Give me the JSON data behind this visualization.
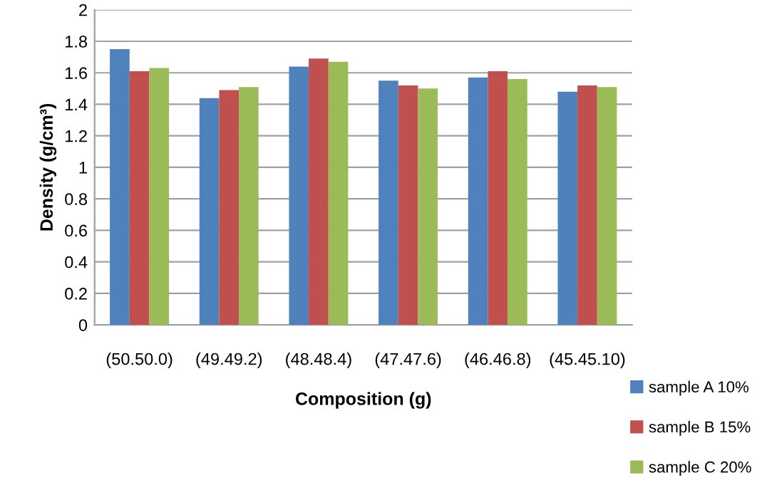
{
  "chart_data": {
    "type": "bar",
    "xlabel": "Composition (g)",
    "ylabel": "Density (g/cm³)",
    "categories": [
      "(50.50.0)",
      "(49.49.2)",
      "(48.48.4)",
      "(47.47.6)",
      "(46.46.8)",
      "(45.45.10)"
    ],
    "series": [
      {
        "name": "sample A 10%",
        "color": "#4f81bd",
        "values": [
          1.75,
          1.44,
          1.64,
          1.55,
          1.57,
          1.48
        ]
      },
      {
        "name": "sample B 15%",
        "color": "#c0504d",
        "values": [
          1.61,
          1.49,
          1.69,
          1.52,
          1.61,
          1.52
        ]
      },
      {
        "name": "sample C 20%",
        "color": "#9bbb59",
        "values": [
          1.63,
          1.51,
          1.67,
          1.5,
          1.56,
          1.51
        ]
      }
    ],
    "ylim": [
      0,
      2
    ],
    "yticks": [
      0,
      0.2,
      0.4,
      0.6,
      0.8,
      1,
      1.2,
      1.4,
      1.6,
      1.8,
      2
    ],
    "grid": "y",
    "legend": "bottom right"
  }
}
